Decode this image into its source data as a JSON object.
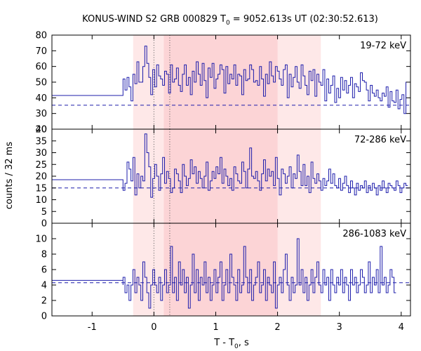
{
  "chart_data": {
    "type": "line",
    "title": {
      "main": "KONUS-WIND S2 GRB 000829 T",
      "sub": "0",
      "rest": " = 9052.613s UT (02:30:52.613)"
    },
    "xlabel": {
      "main": "T - T",
      "sub": "0",
      "rest": ", s"
    },
    "ylabel": "counts / 32 ms",
    "xlim": [
      -1.65,
      4.15
    ],
    "x_ticks": [
      -1,
      0,
      1,
      2,
      3,
      4
    ],
    "x_tick_labels": [
      "-1",
      "0",
      "1",
      "2",
      "3",
      "4"
    ],
    "shaded_regions": [
      {
        "x0": -0.336,
        "x1": 2.7,
        "color": "#fee8e8"
      },
      {
        "x0": 0.16,
        "x1": 2.0,
        "color": "#fcd4d6"
      }
    ],
    "vertical_lines": [
      0.0,
      0.256
    ],
    "line_color": "#1c1cab",
    "bin_width": 0.032,
    "pre_trigger": {
      "x0": -1.65,
      "x1": -0.5
    },
    "panels": [
      {
        "band": "19-72 keV",
        "ylim": [
          20,
          80
        ],
        "y_ticks": [
          20,
          30,
          40,
          50,
          60,
          70,
          80
        ],
        "y_tick_labels": [
          "20",
          "30",
          "40",
          "50",
          "60",
          "70",
          "80"
        ],
        "background": 35.3,
        "pre_trigger_level": 41.5,
        "pre_trigger_step": 46,
        "burst_start": -0.5,
        "counts": [
          52,
          45,
          53,
          47,
          38,
          55,
          49,
          63,
          50,
          50,
          60,
          73,
          62,
          53,
          42,
          58,
          47,
          61,
          54,
          52,
          48,
          57,
          55,
          43,
          61,
          50,
          52,
          59,
          48,
          44,
          55,
          61,
          48,
          53,
          42,
          57,
          50,
          63,
          55,
          48,
          62,
          51,
          40,
          59,
          53,
          62,
          46,
          52,
          55,
          61,
          58,
          43,
          60,
          49,
          55,
          52,
          61,
          48,
          55,
          54,
          42,
          58,
          51,
          52,
          61,
          58,
          50,
          51,
          48,
          60,
          52,
          41,
          55,
          49,
          63,
          54,
          50,
          60,
          57,
          52,
          48,
          58,
          61,
          40,
          55,
          47,
          53,
          60,
          50,
          46,
          61,
          54,
          48,
          42,
          57,
          51,
          58,
          41,
          55,
          50,
          48,
          58,
          38,
          52,
          43,
          48,
          54,
          37,
          46,
          40,
          53,
          45,
          51,
          43,
          48,
          53,
          40,
          49,
          47,
          44,
          56,
          51,
          50,
          45,
          38,
          48,
          43,
          41,
          45,
          40,
          38,
          43,
          41,
          47,
          34,
          44,
          38,
          37,
          45,
          33,
          39,
          42,
          30,
          50
        ]
      },
      {
        "band": "72-286 keV",
        "ylim": [
          0,
          40
        ],
        "y_ticks": [
          0,
          5,
          10,
          15,
          20,
          25,
          30,
          35,
          40
        ],
        "y_tick_labels": [
          "0",
          "5",
          "10",
          "15",
          "20",
          "25",
          "30",
          "35",
          "40"
        ],
        "background": 15.0,
        "pre_trigger_level": 18.5,
        "pre_trigger_step": 15,
        "burst_start": -0.5,
        "counts": [
          14,
          17,
          26,
          23,
          18,
          28,
          12,
          21,
          15,
          20,
          18,
          38,
          30,
          24,
          11,
          19,
          25,
          20,
          14,
          21,
          28,
          17,
          22,
          19,
          13,
          15,
          23,
          21,
          18,
          13,
          25,
          20,
          16,
          19,
          27,
          21,
          24,
          17,
          22,
          19,
          15,
          20,
          26,
          14,
          18,
          22,
          19,
          24,
          21,
          28,
          17,
          23,
          20,
          16,
          19,
          14,
          24,
          21,
          18,
          17,
          26,
          22,
          15,
          23,
          32,
          20,
          19,
          22,
          18,
          14,
          21,
          27,
          18,
          23,
          20,
          22,
          16,
          28,
          19,
          12,
          23,
          21,
          17,
          20,
          24,
          15,
          21,
          19,
          29,
          22,
          16,
          25,
          16,
          20,
          13,
          26,
          19,
          17,
          21,
          18,
          14,
          19,
          16,
          18,
          23,
          17,
          21,
          16,
          15,
          19,
          14,
          17,
          20,
          16,
          13,
          18,
          15,
          12,
          17,
          14,
          16,
          15,
          18,
          13,
          16,
          14,
          17,
          15,
          12,
          16,
          14,
          18,
          15,
          13,
          17,
          16,
          15,
          14,
          18,
          16,
          13,
          15,
          17,
          16
        ]
      },
      {
        "band": "286-1083 keV",
        "ylim": [
          0,
          12
        ],
        "y_ticks": [
          0,
          2,
          4,
          6,
          8,
          10
        ],
        "y_tick_labels": [
          "0",
          "2",
          "4",
          "6",
          "8",
          "10"
        ],
        "background": 4.3,
        "pre_trigger_level": 4.6,
        "pre_trigger_step": 4,
        "burst_start": -0.5,
        "counts": [
          5,
          3,
          4,
          2,
          4,
          6,
          3,
          5,
          4,
          2,
          7,
          5,
          3,
          1,
          4,
          6,
          4,
          3,
          5,
          2,
          4,
          6,
          3,
          4,
          9,
          3,
          5,
          2,
          7,
          4,
          6,
          3,
          5,
          1,
          4,
          8,
          3,
          6,
          2,
          5,
          4,
          7,
          3,
          5,
          2,
          4,
          6,
          3,
          5,
          7,
          2,
          4,
          6,
          3,
          8,
          5,
          4,
          2,
          6,
          3,
          4,
          9,
          5,
          3,
          6,
          2,
          4,
          5,
          7,
          3,
          4,
          6,
          2,
          5,
          4,
          3,
          7,
          1,
          4,
          5,
          3,
          6,
          8,
          4,
          2,
          5,
          3,
          4,
          10,
          4,
          6,
          3,
          5,
          2,
          4,
          6,
          3,
          5,
          7,
          4,
          3,
          6,
          4,
          5,
          2,
          6,
          4,
          3,
          5,
          4,
          6,
          3,
          5,
          4,
          2,
          6,
          4,
          5,
          3,
          4,
          6,
          5,
          3,
          4,
          7,
          3,
          5,
          4,
          6,
          3,
          9,
          4,
          5,
          3,
          4,
          6,
          5,
          3
        ]
      }
    ]
  }
}
